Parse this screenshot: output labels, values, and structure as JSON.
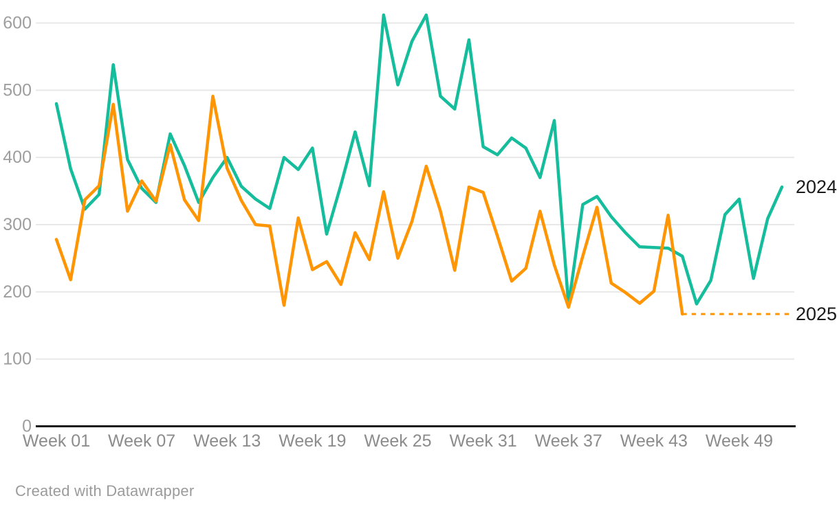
{
  "attribution": "Created with Datawrapper",
  "chart_data": {
    "type": "line",
    "title": "",
    "xlabel": "",
    "ylabel": "",
    "x_unit": "week-of-year",
    "weeks": 52,
    "ylim": [
      0,
      600
    ],
    "yticks": [
      0,
      100,
      200,
      300,
      400,
      500,
      600
    ],
    "grid": "horizontal",
    "x_tick_labels": [
      "Week 01",
      "Week 07",
      "Week 13",
      "Week 19",
      "Week 25",
      "Week 31",
      "Week 37",
      "Week 43",
      "Week 49"
    ],
    "x_tick_weeks": [
      1,
      7,
      13,
      19,
      25,
      31,
      37,
      43,
      49
    ],
    "legend_position": "end-of-line-labels",
    "series": [
      {
        "name": "2024",
        "color": "#16BD9C",
        "label_color": "#1a1a1a",
        "start_week": 1,
        "values": [
          480,
          383,
          323,
          345,
          538,
          397,
          354,
          333,
          435,
          388,
          333,
          370,
          400,
          357,
          338,
          324,
          400,
          382,
          414,
          286,
          359,
          438,
          358,
          612,
          508,
          573,
          612,
          491,
          472,
          575,
          416,
          404,
          429,
          414,
          370,
          455,
          180,
          330,
          342,
          312,
          288,
          267,
          266,
          265,
          253,
          182,
          217,
          315,
          338,
          220,
          309,
          356
        ]
      },
      {
        "name": "2025",
        "color": "#FF9502",
        "label_color": "#1a1a1a",
        "start_week": 1,
        "values": [
          278,
          218,
          337,
          358,
          479,
          320,
          365,
          335,
          419,
          337,
          306,
          491,
          384,
          336,
          300,
          298,
          180,
          310,
          233,
          245,
          211,
          288,
          248,
          349,
          250,
          305,
          387,
          320,
          232,
          356,
          348,
          283,
          216,
          235,
          320,
          240,
          177,
          253,
          326,
          213,
          199,
          183,
          201,
          314,
          167
        ],
        "projection": {
          "style": "dotted",
          "value": 167,
          "note": "dotted flat line continues from last point to right edge of plot"
        }
      }
    ]
  },
  "colors": {
    "grid": "#E8E8E8",
    "axis": "#161616",
    "y_tick_text": "#9E9E9E",
    "x_tick_text": "#8C8C8C",
    "series_label_text": "#1a1a1a",
    "background": "#ffffff"
  }
}
